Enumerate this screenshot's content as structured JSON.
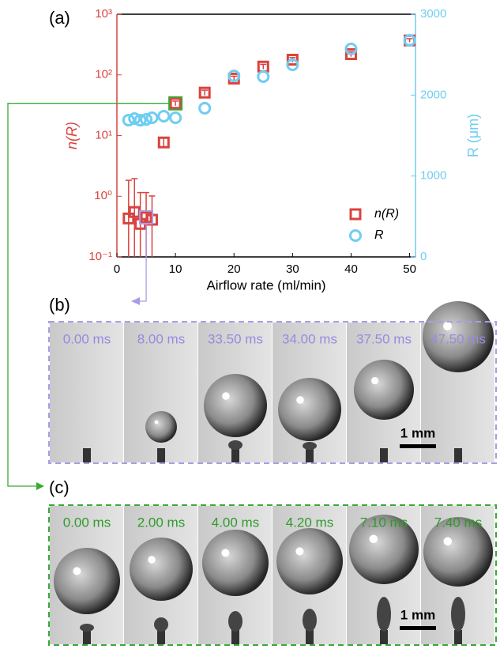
{
  "chart_data": {
    "type": "scatter",
    "panel_label": "(a)",
    "x_label": "Airflow rate (ml/min)",
    "y_label": "n(R)",
    "y2_label": "R (μm)",
    "xlim": [
      0,
      51
    ],
    "xticks": [
      0,
      10,
      20,
      30,
      40,
      50
    ],
    "ylim": [
      0.1,
      1000
    ],
    "y_log": true,
    "yticks": [
      {
        "value": 0.1,
        "label": "10⁻¹"
      },
      {
        "value": 1,
        "label": "10⁰"
      },
      {
        "value": 10,
        "label": "10¹"
      },
      {
        "value": 100,
        "label": "10²"
      },
      {
        "value": 1000,
        "label": "10³"
      }
    ],
    "y2lim": [
      0,
      3000
    ],
    "y2ticks": [
      0,
      1000,
      2000,
      3000
    ],
    "legend": "lower right",
    "series": [
      {
        "name": "n(R)",
        "color": "#d9433f",
        "marker": "square",
        "x": [
          2,
          3,
          4,
          5,
          6,
          8,
          10,
          15,
          20,
          25,
          30,
          40,
          50
        ],
        "values": [
          0.43,
          0.55,
          0.35,
          0.45,
          0.41,
          7.7,
          34,
          51,
          87,
          137,
          178,
          220,
          370
        ],
        "errors": [
          1.4,
          1.4,
          0.8,
          0.7,
          0.6,
          1.5,
          3,
          5,
          8,
          12,
          15,
          20,
          25
        ]
      },
      {
        "name": "R",
        "color": "#6fcdf2",
        "marker": "circle",
        "axis": "y2",
        "x": [
          2,
          3,
          4,
          5,
          6,
          8,
          10,
          15,
          20,
          25,
          30,
          40,
          50
        ],
        "values": [
          1691,
          1710,
          1690,
          1700,
          1720,
          1740,
          1720,
          1838,
          2238,
          2229,
          2375,
          2571,
          2678
        ]
      }
    ]
  },
  "panels": [
    {
      "label": "(b)",
      "times": [
        "0.00 ms",
        "8.00 ms",
        "33.50 ms",
        "34.00 ms",
        "37.50 ms",
        "47.50 ms"
      ],
      "scale_bar": "1 mm"
    },
    {
      "label": "(c)",
      "times": [
        "0.00 ms",
        "2.00 ms",
        "4.00 ms",
        "4.20 ms",
        "7.10 ms",
        "7.40 ms"
      ],
      "scale_bar": "1 mm"
    }
  ]
}
